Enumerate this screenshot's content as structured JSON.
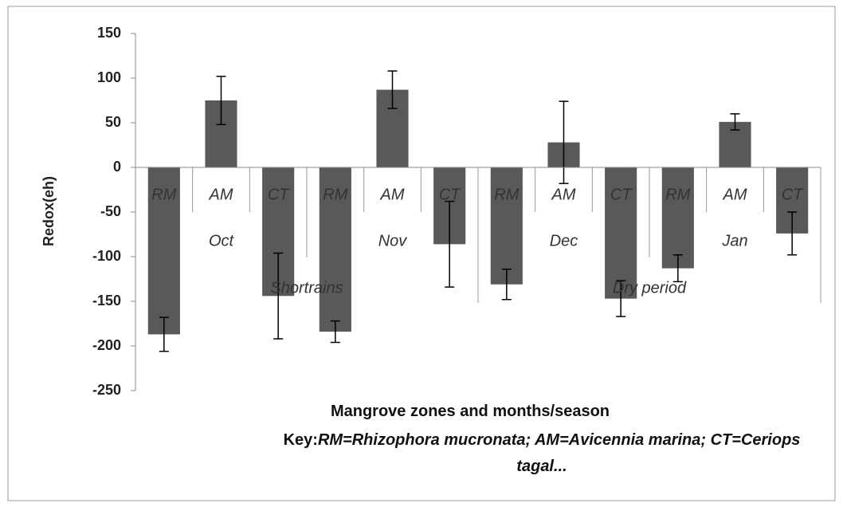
{
  "chart_data": {
    "type": "bar",
    "ylabel": "Redox(eh)",
    "xlabel": "Mangrove zones and months/season",
    "key_label": "Key:",
    "key_text": "RM=Rhizophora mucronata; AM=Avicennia marina; CT=Ceriops tagal...",
    "groups": [
      {
        "name": "Shortrains",
        "months": [
          {
            "name": "Oct",
            "categories": [
              "RM",
              "AM",
              "CT"
            ]
          },
          {
            "name": "Nov",
            "categories": [
              "RM",
              "AM",
              "CT"
            ]
          }
        ]
      },
      {
        "name": "Dry period",
        "months": [
          {
            "name": "Dec",
            "categories": [
              "RM",
              "AM",
              "CT"
            ]
          },
          {
            "name": "Jan",
            "categories": [
              "RM",
              "AM",
              "CT"
            ]
          }
        ]
      }
    ],
    "values": [
      -187,
      75,
      -144,
      -184,
      87,
      -86,
      -131,
      28,
      -147,
      -113,
      51,
      -74
    ],
    "errors": [
      19,
      27,
      48,
      12,
      21,
      48,
      17,
      46,
      20,
      15,
      9,
      24
    ],
    "color": "#595959",
    "ylim": [
      -250,
      150
    ],
    "yticks": [
      -250,
      -200,
      -150,
      -100,
      -50,
      0,
      50,
      100,
      150
    ]
  }
}
